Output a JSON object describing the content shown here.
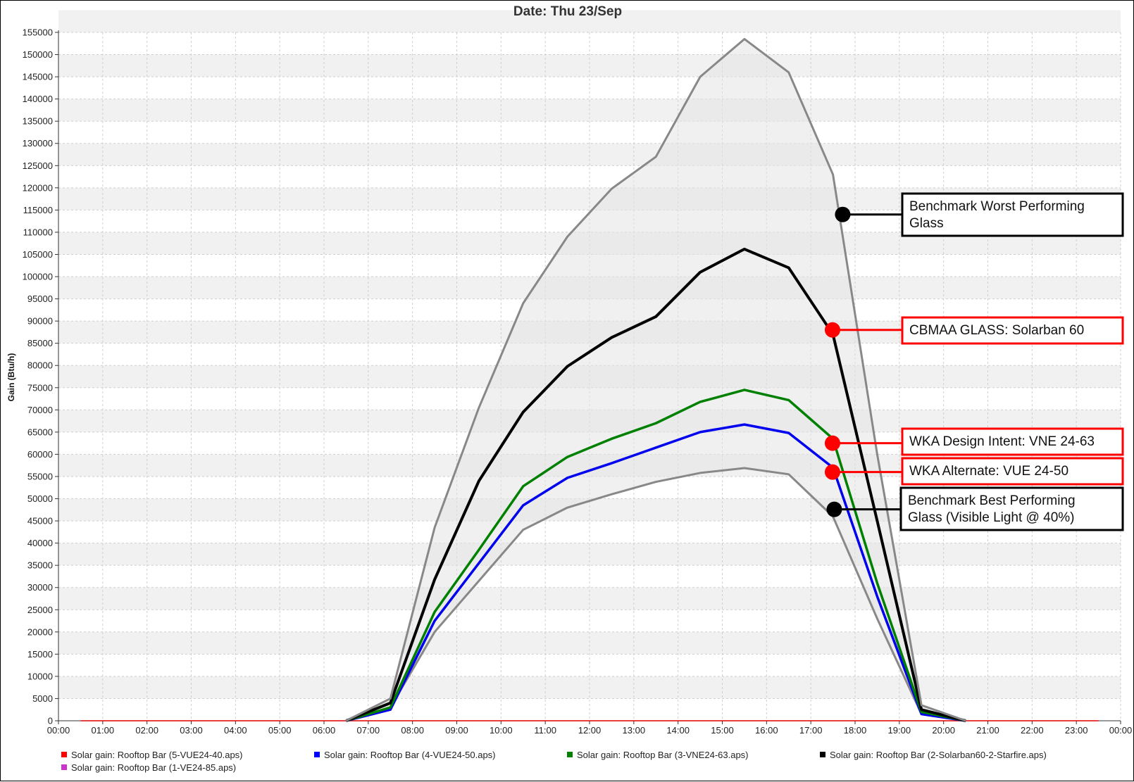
{
  "chart_data": {
    "type": "line",
    "title": "Date: Thu 23/Sep",
    "xlabel": "",
    "ylabel": "Gain (Btu/h)",
    "ylim": [
      0,
      155000
    ],
    "x_ticks": [
      "00:00",
      "01:00",
      "02:00",
      "03:00",
      "04:00",
      "05:00",
      "06:00",
      "07:00",
      "08:00",
      "09:00",
      "10:00",
      "11:00",
      "12:00",
      "13:00",
      "14:00",
      "15:00",
      "16:00",
      "17:00",
      "18:00",
      "19:00",
      "20:00",
      "21:00",
      "22:00",
      "23:00",
      "00:00"
    ],
    "y_ticks": [
      0,
      5000,
      10000,
      15000,
      20000,
      25000,
      30000,
      35000,
      40000,
      45000,
      50000,
      55000,
      60000,
      65000,
      70000,
      75000,
      80000,
      85000,
      90000,
      95000,
      100000,
      105000,
      110000,
      115000,
      120000,
      125000,
      130000,
      135000,
      140000,
      145000,
      150000,
      155000
    ],
    "x_hours": [
      0.5,
      1.5,
      2.5,
      3.5,
      4.5,
      5.5,
      6.5,
      7.5,
      8.5,
      9.5,
      10.5,
      11.5,
      12.5,
      13.5,
      14.5,
      15.5,
      16.5,
      17.5,
      18.5,
      19.5,
      20.5,
      21.5,
      22.5,
      23.5
    ],
    "grid": true,
    "series": [
      {
        "name": "Solar gain: Rooftop Bar (5-VUE24-40.aps)",
        "color": "#888888",
        "legend_color": "#ff0000",
        "values": [
          0,
          0,
          0,
          0,
          0,
          0,
          0,
          3000,
          20000,
          31500,
          43000,
          48000,
          51000,
          53800,
          55800,
          56900,
          55500,
          46000,
          23000,
          1500,
          0,
          0,
          0,
          0
        ]
      },
      {
        "name": "Solar gain: Rooftop Bar (4-VUE24-50.aps)",
        "color": "#0000ee",
        "legend_color": "#0000ff",
        "values": [
          0,
          0,
          0,
          0,
          0,
          0,
          0,
          2500,
          22500,
          35500,
          48500,
          54700,
          58000,
          61500,
          65000,
          66700,
          64800,
          57000,
          28000,
          1500,
          0,
          0,
          0,
          0
        ]
      },
      {
        "name": "Solar gain: Rooftop Bar (3-VNE24-63.aps)",
        "color": "#008000",
        "legend_color": "#008000",
        "values": [
          0,
          0,
          0,
          0,
          0,
          0,
          0,
          3000,
          24500,
          38500,
          52800,
          59400,
          63500,
          67000,
          71800,
          74500,
          72200,
          63500,
          31000,
          2000,
          0,
          0,
          0,
          0
        ]
      },
      {
        "name": "Solar gain: Rooftop Bar (2-Solarban60-2-Starfire.aps)",
        "color": "#000000",
        "legend_color": "#000000",
        "values": [
          0,
          0,
          0,
          0,
          0,
          0,
          0,
          4000,
          31800,
          54000,
          69500,
          79800,
          86300,
          91000,
          101000,
          106200,
          102000,
          87000,
          45000,
          2500,
          0,
          0,
          0,
          0
        ]
      },
      {
        "name": "Solar gain: Rooftop Bar (1-VE24-85.aps)",
        "color": "#888888",
        "legend_color": "#cc33cc",
        "values": [
          0,
          0,
          0,
          0,
          0,
          0,
          0,
          5000,
          43500,
          70500,
          94000,
          109000,
          119800,
          127000,
          145000,
          153500,
          146000,
          123000,
          60000,
          3500,
          0,
          0,
          0,
          0
        ]
      }
    ],
    "annotations": [
      {
        "label": "Benchmark Worst Performing Glass",
        "lines": [
          "Benchmark Worst Performing",
          "Glass"
        ],
        "marker_color": "#000000",
        "box_color": "#000000"
      },
      {
        "label": "CBMAA GLASS: Solarban 60",
        "lines": [
          "CBMAA GLASS: Solarban 60"
        ],
        "marker_color": "#ff0000",
        "box_color": "#ff0000"
      },
      {
        "label": "WKA Design Intent: VNE 24-63",
        "lines": [
          "WKA Design Intent: VNE 24-63"
        ],
        "marker_color": "#ff0000",
        "box_color": "#ff0000"
      },
      {
        "label": "WKA Alternate: VUE 24-50",
        "lines": [
          "WKA Alternate: VUE 24-50"
        ],
        "marker_color": "#ff0000",
        "box_color": "#ff0000"
      },
      {
        "label": "Benchmark Best Performing Glass (Visible Light @ 40%)",
        "lines": [
          "Benchmark Best Performing",
          "Glass (Visible Light @ 40%)"
        ],
        "marker_color": "#000000",
        "box_color": "#000000"
      }
    ]
  }
}
